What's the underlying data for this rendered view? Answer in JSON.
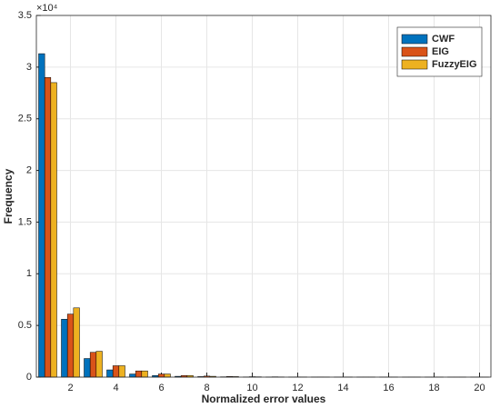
{
  "chart_data": {
    "type": "bar",
    "x_label": "Normalized error values",
    "y_label": "Frequency",
    "y_multiplier": "×10⁴",
    "x": [
      1,
      2,
      3,
      4,
      5,
      6,
      7,
      8,
      9,
      10,
      11,
      12,
      13,
      14,
      15,
      16,
      17,
      18,
      19,
      20
    ],
    "series": [
      {
        "name": "CWF",
        "color": "#0072BD",
        "values": [
          3.13,
          0.56,
          0.18,
          0.07,
          0.03,
          0.015,
          0.008,
          0.005,
          0.003,
          0.002,
          0.001,
          0.001,
          0.001,
          0.0005,
          0.0005,
          0.0005,
          0.0003,
          0.0003,
          0.0002,
          0.0002
        ]
      },
      {
        "name": "EIG",
        "color": "#D95319",
        "values": [
          2.9,
          0.61,
          0.24,
          0.11,
          0.06,
          0.03,
          0.015,
          0.01,
          0.006,
          0.004,
          0.003,
          0.002,
          0.0015,
          0.001,
          0.001,
          0.0008,
          0.0006,
          0.0005,
          0.0004,
          0.0003
        ]
      },
      {
        "name": "FuzzyEIG",
        "color": "#EDB120",
        "values": [
          2.85,
          0.67,
          0.25,
          0.11,
          0.06,
          0.03,
          0.015,
          0.008,
          0.005,
          0.003,
          0.002,
          0.0015,
          0.001,
          0.001,
          0.0008,
          0.0006,
          0.0005,
          0.0004,
          0.0003,
          0.0002
        ]
      }
    ],
    "xlim": [
      0.5,
      20.5
    ],
    "xticks": [
      2,
      4,
      6,
      8,
      10,
      12,
      14,
      16,
      18,
      20
    ],
    "ylim": [
      0,
      3.5
    ],
    "yticks": [
      0,
      0.5,
      1,
      1.5,
      2,
      2.5,
      3,
      3.5
    ],
    "grid": true,
    "legend": "top-right"
  }
}
